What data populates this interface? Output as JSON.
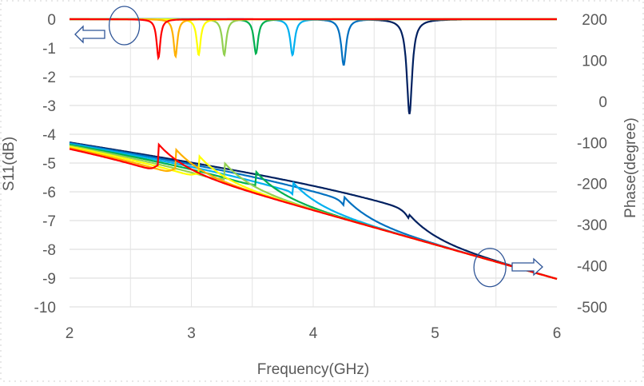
{
  "chart_data": {
    "type": "line",
    "xlabel": "Frequency(GHz)",
    "ylabel_left": "S11(dB)",
    "ylabel_right": "Phase(degree)",
    "xlim": [
      2,
      6
    ],
    "ylim_left": [
      -10,
      0
    ],
    "ylim_right": [
      -500,
      200
    ],
    "x_ticks": [
      "2",
      "3",
      "4",
      "5",
      "6"
    ],
    "y_left_ticks": [
      "0",
      "-1",
      "-2",
      "-3",
      "-4",
      "-5",
      "-6",
      "-7",
      "-8",
      "-9",
      "-10"
    ],
    "y_right_ticks": [
      "200",
      "100",
      "0",
      "-100",
      "-200",
      "-300",
      "-400",
      "-500"
    ],
    "grid": true,
    "annotations": [
      {
        "type": "ellipse",
        "x": 2.45,
        "y_left": 0,
        "meaning": "S11 curves read on left axis",
        "arrow": "left"
      },
      {
        "type": "ellipse",
        "x": 5.45,
        "y_right": -410,
        "meaning": "phase curves read on right axis",
        "arrow": "right"
      }
    ],
    "series": [
      {
        "color": "#ff0000",
        "resonance_ghz": 2.73,
        "s11_min_db": -1.35,
        "phase_transition_ghz": 2.73
      },
      {
        "color": "#ffb000",
        "resonance_ghz": 2.87,
        "s11_min_db": -1.3,
        "phase_transition_ghz": 2.87
      },
      {
        "color": "#ffff00",
        "resonance_ghz": 3.06,
        "s11_min_db": -1.25,
        "phase_transition_ghz": 3.06
      },
      {
        "color": "#92d050",
        "resonance_ghz": 3.27,
        "s11_min_db": -1.25,
        "phase_transition_ghz": 3.27
      },
      {
        "color": "#00b050",
        "resonance_ghz": 3.53,
        "s11_min_db": -1.2,
        "phase_transition_ghz": 3.53
      },
      {
        "color": "#00b0f0",
        "resonance_ghz": 3.83,
        "s11_min_db": -1.25,
        "phase_transition_ghz": 3.83
      },
      {
        "color": "#0070c0",
        "resonance_ghz": 4.25,
        "s11_min_db": -1.6,
        "phase_transition_ghz": 4.25
      },
      {
        "color": "#002060",
        "resonance_ghz": 4.79,
        "s11_min_db": -3.3,
        "phase_transition_ghz": 4.79
      }
    ],
    "phase_baseline": {
      "start_deg": -98,
      "end_deg": -432,
      "upper_start_deg": -98,
      "upper_end_deg": -280
    }
  }
}
